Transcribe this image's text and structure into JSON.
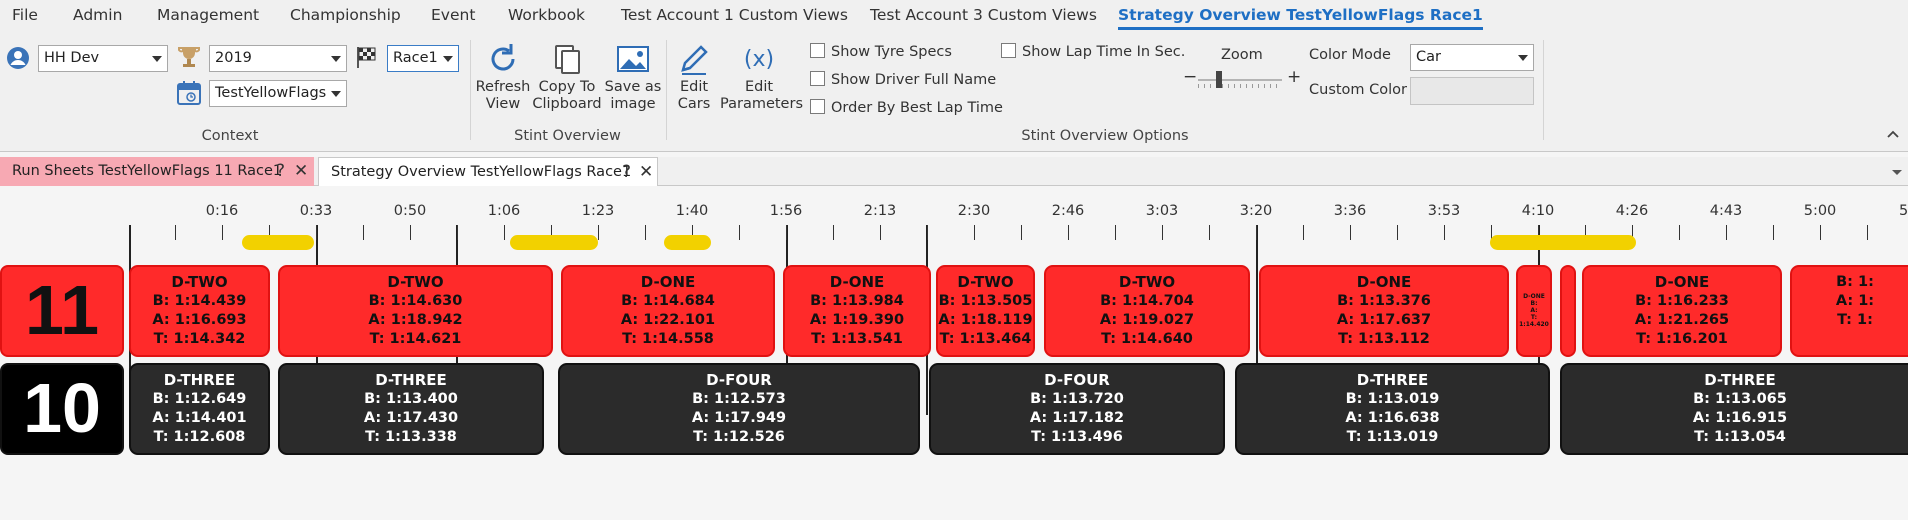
{
  "menu": {
    "items": [
      "File",
      "Admin",
      "Management",
      "Championship",
      "Event",
      "Workbook",
      "Test Account 1 Custom Views",
      "Test Account 3 Custom Views",
      "Strategy Overview TestYellowFlags Race1"
    ]
  },
  "ribbon": {
    "context": {
      "account": "HH Dev",
      "year": "2019",
      "session": "Race1",
      "event": "TestYellowFlags",
      "label": "Context"
    },
    "stint_overview": {
      "refresh": "Refresh\nView",
      "copy": "Copy To\nClipboard",
      "save": "Save as\nimage",
      "label": "Stint Overview"
    },
    "options": {
      "edit_cars": "Edit\nCars",
      "edit_params": "Edit\nParameters",
      "show_tyre_specs": "Show Tyre Specs",
      "show_driver_full_name": "Show Driver Full Name",
      "order_by_best": "Order By Best Lap Time",
      "show_lap_time_sec": "Show Lap Time In Sec.",
      "zoom_label": "Zoom",
      "zoom_minus": "−",
      "zoom_plus": "+",
      "zoom_level": 0.25,
      "color_mode_label": "Color Mode",
      "color_mode_value": "Car",
      "custom_color_label": "Custom Color",
      "label": "Stint Overview Options"
    }
  },
  "doc_tabs": [
    {
      "label": "Run Sheets TestYellowFlags 11 Race1",
      "active": false
    },
    {
      "label": "Strategy Overview TestYellowFlags Race1",
      "active": true
    }
  ],
  "doc_tab_help": "?",
  "doc_tab_close": "✕",
  "colors": {
    "accent": "#1e6fc4",
    "red_stint": "#ff2a2a",
    "dark_stint": "#2b2b2b",
    "yellow_flag": "#f2d100",
    "inactive_tab": "#f7a9b3"
  },
  "timeline": {
    "axis_labels": [
      "0:16",
      "0:33",
      "0:50",
      "1:06",
      "1:23",
      "1:40",
      "1:56",
      "2:13",
      "2:30",
      "2:46",
      "3:03",
      "3:20",
      "3:36",
      "3:53",
      "4:10",
      "4:26",
      "4:43",
      "5:00",
      "5:"
    ],
    "cars": [
      {
        "number": "11",
        "stints": [
          {
            "compound": "D-TWO",
            "best": "B: 1:14.439",
            "avg": "A: 1:16.693",
            "target": "T: 1:14.342"
          },
          {
            "compound": "D-TWO",
            "best": "B: 1:14.630",
            "avg": "A: 1:18.942",
            "target": "T: 1:14.621"
          },
          {
            "compound": "D-ONE",
            "best": "B: 1:14.684",
            "avg": "A: 1:22.101",
            "target": "T: 1:14.558"
          },
          {
            "compound": "D-ONE",
            "best": "B: 1:13.984",
            "avg": "A: 1:19.390",
            "target": "T: 1:13.541"
          },
          {
            "compound": "D-TWO",
            "best": "B: 1:13.505",
            "avg": "A: 1:18.119",
            "target": "T: 1:13.464"
          },
          {
            "compound": "D-TWO",
            "best": "B: 1:14.704",
            "avg": "A: 1:19.027",
            "target": "T: 1:14.640"
          },
          {
            "compound": "D-ONE",
            "best": "B: 1:13.376",
            "avg": "A: 1:17.637",
            "target": "T: 1:13.112"
          },
          {
            "compound": "D-ONE",
            "best": "B:",
            "avg": "A:",
            "target": "T: 1:14.420"
          },
          {
            "compound": "",
            "best": "",
            "avg": "",
            "target": ""
          },
          {
            "compound": "D-ONE",
            "best": "B: 1:16.233",
            "avg": "A: 1:21.265",
            "target": "T: 1:16.201"
          },
          {
            "compound": "",
            "best": "B: 1:",
            "avg": "A: 1:",
            "target": "T: 1:"
          }
        ]
      },
      {
        "number": "10",
        "stints": [
          {
            "compound": "D-THREE",
            "best": "B: 1:12.649",
            "avg": "A: 1:14.401",
            "target": "T: 1:12.608"
          },
          {
            "compound": "D-THREE",
            "best": "B: 1:13.400",
            "avg": "A: 1:17.430",
            "target": "T: 1:13.338"
          },
          {
            "compound": "D-FOUR",
            "best": "B: 1:12.573",
            "avg": "A: 1:17.949",
            "target": "T: 1:12.526"
          },
          {
            "compound": "D-FOUR",
            "best": "B: 1:13.720",
            "avg": "A: 1:17.182",
            "target": "T: 1:13.496"
          },
          {
            "compound": "D-THREE",
            "best": "B: 1:13.019",
            "avg": "A: 1:16.638",
            "target": "T: 1:13.019"
          },
          {
            "compound": "D-THREE",
            "best": "B: 1:13.065",
            "avg": "A: 1:16.915",
            "target": "T: 1:13.054"
          }
        ]
      }
    ]
  }
}
